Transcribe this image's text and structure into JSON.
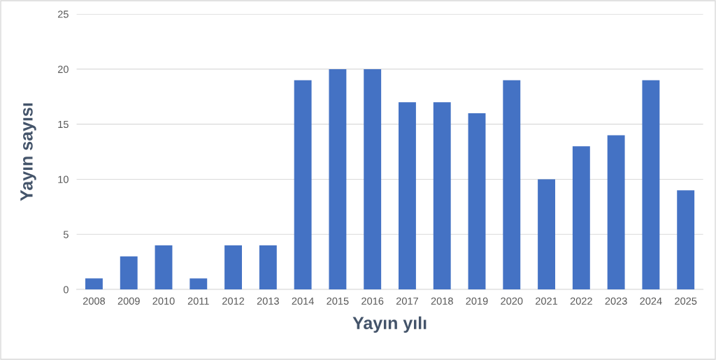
{
  "chart_data": {
    "type": "bar",
    "xlabel": "Yayın yılı",
    "ylabel": "Yayın sayısı",
    "categories": [
      "2008",
      "2009",
      "2010",
      "2011",
      "2012",
      "2013",
      "2014",
      "2015",
      "2016",
      "2017",
      "2018",
      "2019",
      "2020",
      "2021",
      "2022",
      "2023",
      "2024",
      "2025"
    ],
    "values": [
      1,
      3,
      4,
      1,
      4,
      4,
      19,
      20,
      20,
      17,
      17,
      16,
      19,
      10,
      13,
      14,
      19,
      9
    ],
    "color": "#4472c4",
    "ylim": [
      0,
      25
    ],
    "yticks": [
      0,
      5,
      10,
      15,
      20,
      25
    ],
    "grid": "y"
  }
}
